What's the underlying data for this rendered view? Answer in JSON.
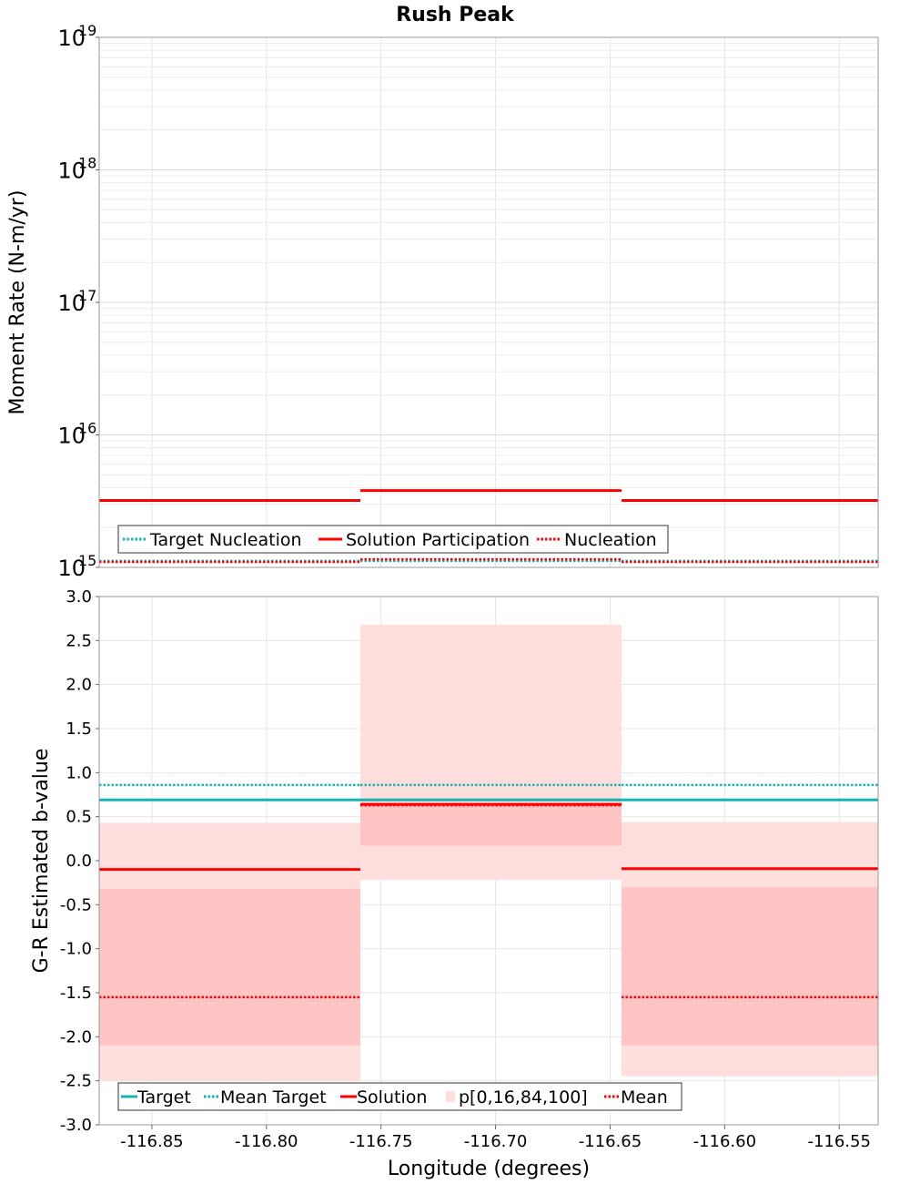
{
  "chart_data": [
    {
      "type": "line",
      "title": "Rush Peak",
      "xlabel": "",
      "ylabel": "Moment Rate (N-m/yr)",
      "yscale": "log",
      "ylim": [
        1000000000000000.0,
        1e+19
      ],
      "xlim": [
        -116.873,
        -116.533
      ],
      "grid": true,
      "legend_placement": "bottom-left",
      "y_ticks": [
        {
          "base": "10",
          "exp": "15"
        },
        {
          "base": "10",
          "exp": "16"
        },
        {
          "base": "10",
          "exp": "17"
        },
        {
          "base": "10",
          "exp": "18"
        },
        {
          "base": "10",
          "exp": "19"
        }
      ],
      "segments": [
        {
          "x0": -116.873,
          "x1": -116.759
        },
        {
          "x0": -116.759,
          "x1": -116.645
        },
        {
          "x0": -116.645,
          "x1": -116.533
        }
      ],
      "series": [
        {
          "name": "Target Nucleation",
          "style": "dotted",
          "color": "#17b3b3",
          "values": [
            1120000000000000.0,
            1120000000000000.0,
            1120000000000000.0
          ]
        },
        {
          "name": "Solution Participation",
          "style": "solid",
          "color": "#ff0000",
          "values": [
            3200000000000000.0,
            3800000000000000.0,
            3200000000000000.0
          ]
        },
        {
          "name": "Nucleation",
          "style": "dotted",
          "color": "#ff0000",
          "values": [
            1100000000000000.0,
            1150000000000000.0,
            1100000000000000.0
          ]
        }
      ]
    },
    {
      "type": "line",
      "title": "",
      "xlabel": "Longitude (degrees)",
      "ylabel": "G-R Estimated b-value",
      "ylim": [
        -3.0,
        3.0
      ],
      "xlim": [
        -116.873,
        -116.533
      ],
      "grid": true,
      "legend_placement": "bottom-left",
      "x_ticks": [
        "-116.85",
        "-116.80",
        "-116.75",
        "-116.70",
        "-116.65",
        "-116.60",
        "-116.55"
      ],
      "x_tick_values": [
        -116.85,
        -116.8,
        -116.75,
        -116.7,
        -116.65,
        -116.6,
        -116.55
      ],
      "y_ticks": [
        "3.0",
        "2.5",
        "2.0",
        "1.5",
        "1.0",
        "0.5",
        "0.0",
        "-0.5",
        "-1.0",
        "-1.5",
        "-2.0",
        "-2.5",
        "-3.0"
      ],
      "y_tick_values": [
        3.0,
        2.5,
        2.0,
        1.5,
        1.0,
        0.5,
        0.0,
        -0.5,
        -1.0,
        -1.5,
        -2.0,
        -2.5,
        -3.0
      ],
      "segments": [
        {
          "x0": -116.873,
          "x1": -116.759
        },
        {
          "x0": -116.759,
          "x1": -116.645
        },
        {
          "x0": -116.645,
          "x1": -116.533
        }
      ],
      "percentiles": {
        "name": "p[0,16,84,100]",
        "color": "#ff0000",
        "p0": [
          -2.5,
          -0.22,
          -2.45
        ],
        "p16": [
          -2.1,
          0.17,
          -2.1
        ],
        "p84": [
          -0.32,
          0.63,
          -0.3
        ],
        "p100": [
          0.43,
          2.68,
          0.44
        ]
      },
      "series": [
        {
          "name": "Target",
          "style": "solid",
          "color": "#17b3b3",
          "values": [
            0.69,
            0.69,
            0.69
          ]
        },
        {
          "name": "Mean Target",
          "style": "dotted",
          "color": "#17b3b3",
          "values": [
            0.86,
            0.86,
            0.86
          ]
        },
        {
          "name": "Solution",
          "style": "solid",
          "color": "#ff0000",
          "values": [
            -0.1,
            0.64,
            -0.09
          ]
        },
        {
          "name": "Mean",
          "style": "dotted",
          "color": "#ff0000",
          "values": [
            -1.55,
            0.63,
            -1.55
          ]
        }
      ]
    }
  ]
}
